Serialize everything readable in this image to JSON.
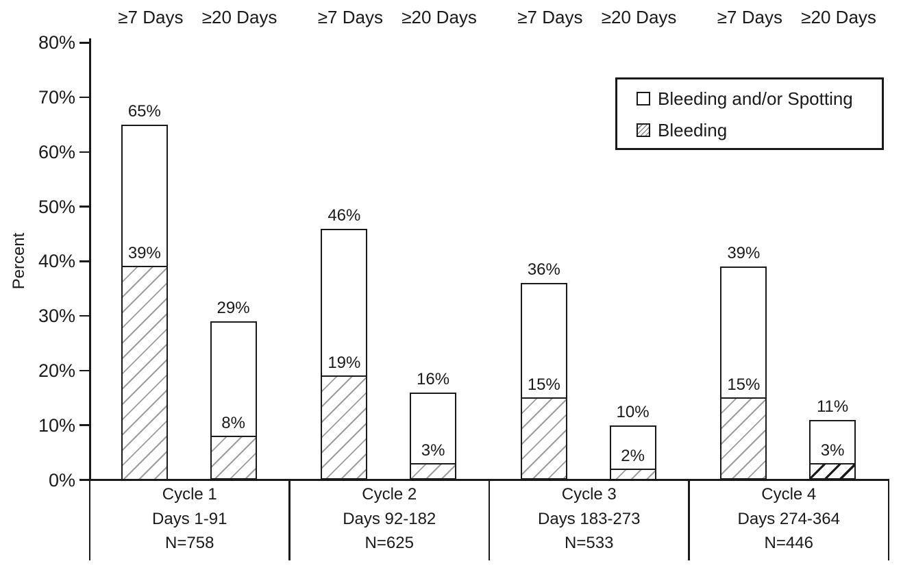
{
  "colors": {
    "line": "#1a1a1a",
    "text": "#1a1a1a",
    "hatch_gray": "#9c9c9c",
    "background": "#ffffff"
  },
  "chart_data": {
    "type": "bar",
    "stacked": true,
    "title": "",
    "ylabel": "Percent",
    "xlabel": "",
    "ylim": [
      0,
      80
    ],
    "ytick_step": 10,
    "ytick_suffix": "%",
    "grid": false,
    "legend": {
      "position": "top-right",
      "entries": [
        {
          "label": "Bleeding and/or Spotting",
          "swatch": "white"
        },
        {
          "label": "Bleeding",
          "swatch": "hatch"
        }
      ]
    },
    "series": [
      {
        "name": "Bleeding and/or Spotting",
        "totals": [
          65,
          29,
          46,
          16,
          36,
          10,
          39,
          11
        ]
      },
      {
        "name": "Bleeding",
        "totals": [
          39,
          8,
          19,
          3,
          15,
          2,
          15,
          3
        ]
      }
    ],
    "groups": [
      {
        "label_lines": [
          "Cycle 1",
          "Days 1-91",
          "N=758"
        ],
        "bars": [
          {
            "column": "≥7 Days",
            "total_pct": 65,
            "bleeding_pct": 39
          },
          {
            "column": "≥20 Days",
            "total_pct": 29,
            "bleeding_pct": 8
          }
        ]
      },
      {
        "label_lines": [
          "Cycle 2",
          "Days 92-182",
          "N=625"
        ],
        "bars": [
          {
            "column": "≥7 Days",
            "total_pct": 46,
            "bleeding_pct": 19
          },
          {
            "column": "≥20 Days",
            "total_pct": 16,
            "bleeding_pct": 3
          }
        ]
      },
      {
        "label_lines": [
          "Cycle 3",
          "Days 183-273",
          "N=533"
        ],
        "bars": [
          {
            "column": "≥7 Days",
            "total_pct": 36,
            "bleeding_pct": 15
          },
          {
            "column": "≥20 Days",
            "total_pct": 10,
            "bleeding_pct": 2
          }
        ]
      },
      {
        "label_lines": [
          "Cycle 4",
          "Days 274-364",
          "N=446"
        ],
        "bars": [
          {
            "column": "≥7 Days",
            "total_pct": 39,
            "bleeding_pct": 15
          },
          {
            "column": "≥20 Days",
            "total_pct": 11,
            "bleeding_pct": 3,
            "dark_hatch": true
          }
        ]
      }
    ]
  }
}
